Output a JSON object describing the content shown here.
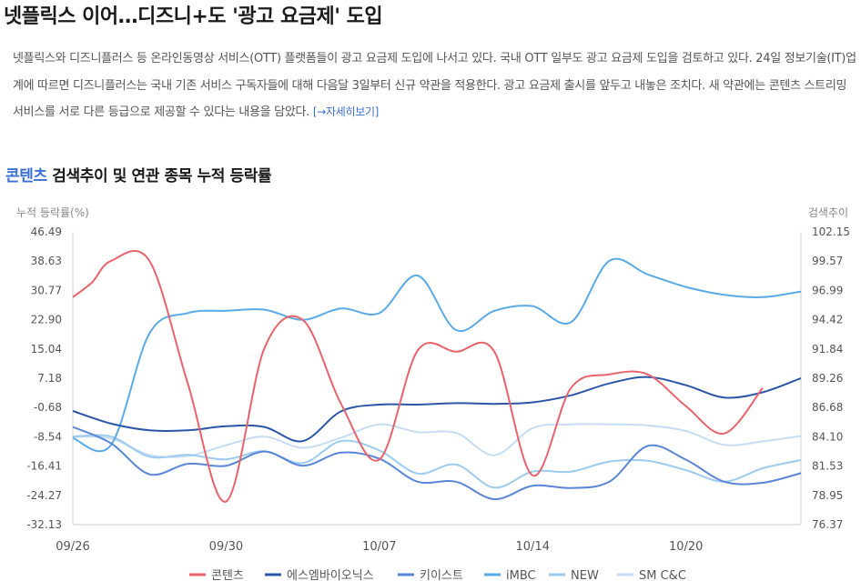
{
  "article": {
    "headline": "넷플릭스 이어…디즈니+도 '광고 요금제' 도입",
    "summary": "넷플릭스와 디즈니플러스 등 온라인동영상 서비스(OTT) 플랫폼들이 광고 요금제 도입에 나서고 있다. 국내 OTT 일부도 광고 요금제 도입을 검토하고 있다. 24일 정보기술(IT)업계에 따르면 디즈니플러스는 국내 기존 서비스 구독자들에 대해 다음달 3일부터 신규 약관을 적용한다. 광고 요금제 출시를 앞두고 내놓은 조치다. 새 약관에는 콘텐츠 스트리밍 서비스를 서로 다른 등급으로 제공할 수 있다는 내용을 담았다.",
    "more_link": "[→자세히보기]"
  },
  "section": {
    "keyword": "콘텐츠",
    "title_rest": " 검색추이 및 연관 종목 누적 등락률"
  },
  "colors": {
    "콘텐츠": "#e8636b",
    "에스엠바이오닉스": "#2b56a8",
    "키이스트": "#5a86d6",
    "iMBC": "#5aaae6",
    "NEW": "#9ccbef",
    "SM C&C": "#c5dcf2"
  },
  "chart_data": {
    "type": "line",
    "y_left_label": "누적 등락률(%)",
    "y_right_label": "검색추이",
    "y_left_ticks": [
      "46.49",
      "38.63",
      "30.77",
      "22.90",
      "15.04",
      "7.18",
      "-0.68",
      "-8.54",
      "-16.41",
      "-24.27",
      "-32.13"
    ],
    "y_right_ticks": [
      "102.15",
      "99.57",
      "96.99",
      "94.42",
      "91.84",
      "89.26",
      "86.68",
      "84.10",
      "81.53",
      "78.95",
      "76.37"
    ],
    "ylim_left": [
      -32.13,
      46.49
    ],
    "ylim_right": [
      76.37,
      102.15
    ],
    "x_ticks": [
      {
        "label": "09/26",
        "x": 0
      },
      {
        "label": "09/30",
        "x": 4
      },
      {
        "label": "10/07",
        "x": 8
      },
      {
        "label": "10/14",
        "x": 12
      },
      {
        "label": "10/20",
        "x": 16
      }
    ],
    "x_range": [
      0,
      19
    ],
    "series": [
      {
        "name": "콘텐츠",
        "axis": "right",
        "points": [
          [
            0,
            96.4
          ],
          [
            0.5,
            97.7
          ],
          [
            1,
            99.6
          ],
          [
            2,
            99.6
          ],
          [
            3,
            88.8
          ],
          [
            4,
            78.4
          ],
          [
            5,
            91.9
          ],
          [
            6,
            94.4
          ],
          [
            7,
            87.0
          ],
          [
            8,
            82.1
          ],
          [
            9,
            91.7
          ],
          [
            10,
            91.6
          ],
          [
            11,
            91.6
          ],
          [
            12,
            80.7
          ],
          [
            13,
            88.4
          ],
          [
            14,
            89.6
          ],
          [
            15,
            89.6
          ],
          [
            16,
            86.8
          ],
          [
            17,
            84.4
          ],
          [
            18,
            88.4
          ]
        ]
      },
      {
        "name": "에스엠바이오닉스",
        "axis": "left",
        "points": [
          [
            0,
            -1.6
          ],
          [
            1,
            -5.0
          ],
          [
            2,
            -6.8
          ],
          [
            3,
            -6.8
          ],
          [
            4,
            -5.7
          ],
          [
            5,
            -5.9
          ],
          [
            6,
            -9.7
          ],
          [
            7,
            -1.7
          ],
          [
            8,
            0.1
          ],
          [
            9,
            0.1
          ],
          [
            10,
            0.5
          ],
          [
            11,
            0.3
          ],
          [
            12,
            0.7
          ],
          [
            13,
            2.6
          ],
          [
            14,
            5.8
          ],
          [
            15,
            7.5
          ],
          [
            16,
            5.3
          ],
          [
            17,
            2.0
          ],
          [
            18,
            3.4
          ],
          [
            19,
            7.2
          ]
        ]
      },
      {
        "name": "키이스트",
        "axis": "left",
        "points": [
          [
            0,
            -5.9
          ],
          [
            1,
            -10.3
          ],
          [
            2,
            -18.6
          ],
          [
            3,
            -15.8
          ],
          [
            4,
            -16.3
          ],
          [
            5,
            -12.5
          ],
          [
            6,
            -16.3
          ],
          [
            7,
            -12.8
          ],
          [
            8,
            -14.4
          ],
          [
            9,
            -20.6
          ],
          [
            10,
            -20.6
          ],
          [
            11,
            -25.3
          ],
          [
            12,
            -21.7
          ],
          [
            13,
            -22.3
          ],
          [
            14,
            -20.6
          ],
          [
            15,
            -11.0
          ],
          [
            16,
            -14.7
          ],
          [
            17,
            -20.6
          ],
          [
            18,
            -20.9
          ],
          [
            19,
            -18.3
          ]
        ]
      },
      {
        "name": "iMBC",
        "axis": "right",
        "points": [
          [
            0,
            84.0
          ],
          [
            1,
            83.4
          ],
          [
            2,
            93.2
          ],
          [
            3,
            95.0
          ],
          [
            4,
            95.2
          ],
          [
            5,
            95.3
          ],
          [
            6,
            94.4
          ],
          [
            7,
            95.4
          ],
          [
            8,
            95.0
          ],
          [
            9,
            98.3
          ],
          [
            10,
            93.5
          ],
          [
            11,
            95.2
          ],
          [
            12,
            95.6
          ],
          [
            13,
            94.2
          ],
          [
            14,
            99.6
          ],
          [
            15,
            98.4
          ],
          [
            16,
            97.3
          ],
          [
            17,
            96.6
          ],
          [
            18,
            96.4
          ],
          [
            19,
            96.9
          ]
        ]
      },
      {
        "name": "NEW",
        "axis": "left",
        "points": [
          [
            0,
            -8.5
          ],
          [
            1,
            -8.5
          ],
          [
            2,
            -13.9
          ],
          [
            3,
            -13.4
          ],
          [
            4,
            -14.6
          ],
          [
            5,
            -12.4
          ],
          [
            6,
            -15.6
          ],
          [
            7,
            -9.7
          ],
          [
            8,
            -12.2
          ],
          [
            9,
            -18.4
          ],
          [
            10,
            -16.0
          ],
          [
            11,
            -22.2
          ],
          [
            12,
            -17.9
          ],
          [
            13,
            -17.9
          ],
          [
            14,
            -15.2
          ],
          [
            15,
            -15.0
          ],
          [
            16,
            -17.5
          ],
          [
            17,
            -20.6
          ],
          [
            18,
            -17.0
          ],
          [
            19,
            -14.8
          ]
        ]
      },
      {
        "name": "SM C&C",
        "axis": "left",
        "points": [
          [
            0,
            -8.5
          ],
          [
            1,
            -9.0
          ],
          [
            2,
            -13.4
          ],
          [
            3,
            -13.7
          ],
          [
            4,
            -10.8
          ],
          [
            5,
            -8.5
          ],
          [
            6,
            -11.5
          ],
          [
            7,
            -8.8
          ],
          [
            8,
            -5.2
          ],
          [
            9,
            -7.3
          ],
          [
            10,
            -7.5
          ],
          [
            11,
            -13.5
          ],
          [
            12,
            -6.2
          ],
          [
            13,
            -5.2
          ],
          [
            14,
            -5.2
          ],
          [
            15,
            -5.5
          ],
          [
            16,
            -7.0
          ],
          [
            17,
            -10.7
          ],
          [
            18,
            -9.8
          ],
          [
            19,
            -8.3
          ]
        ]
      }
    ],
    "grid": false,
    "legend_position": "bottom"
  }
}
